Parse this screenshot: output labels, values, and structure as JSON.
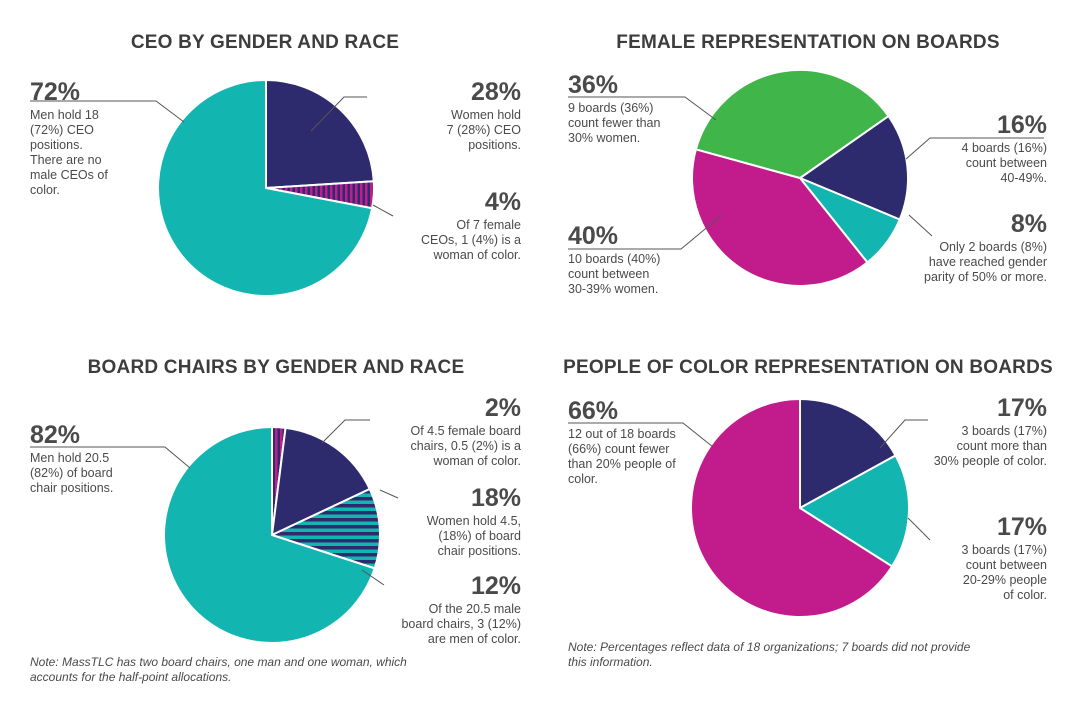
{
  "colors": {
    "navy": "#2e2a6e",
    "teal": "#13b5b1",
    "magenta": "#c21c8c",
    "green": "#3fb54a",
    "text": "#4a4a4a"
  },
  "chart_data": [
    {
      "type": "pie",
      "title": "CEO BY GENDER AND RACE",
      "slices": [
        {
          "value": 24,
          "color": "navy",
          "pattern": "none"
        },
        {
          "value": 4,
          "color": "navy",
          "pattern": "magenta-vertical-stripes"
        },
        {
          "value": 72,
          "color": "teal",
          "pattern": "none"
        }
      ],
      "labels": [
        {
          "pct": "28%",
          "lines": [
            "Women hold",
            "7 (28%) CEO",
            "positions."
          ]
        },
        {
          "pct": "4%",
          "lines": [
            "Of 7 female",
            "CEOs, 1 (4%) is a",
            "woman of color."
          ]
        },
        {
          "pct": "72%",
          "lines": [
            "Men hold 18",
            "(72%) CEO",
            "positions.",
            "There are no",
            "male CEOs of",
            "color."
          ]
        }
      ]
    },
    {
      "type": "pie",
      "title": "FEMALE REPRESENTATION ON BOARDS",
      "slices": [
        {
          "value": 16,
          "color": "navy",
          "pattern": "none"
        },
        {
          "value": 8,
          "color": "teal",
          "pattern": "none"
        },
        {
          "value": 40,
          "color": "magenta",
          "pattern": "none"
        },
        {
          "value": 36,
          "color": "green",
          "pattern": "none"
        }
      ],
      "labels": [
        {
          "pct": "16%",
          "lines": [
            "4 boards (16%)",
            "count between",
            "40-49%."
          ]
        },
        {
          "pct": "8%",
          "lines": [
            "Only 2 boards (8%)",
            "have reached gender",
            "parity of 50% or more."
          ]
        },
        {
          "pct": "40%",
          "lines": [
            "10 boards (40%)",
            "count between",
            "30-39% women."
          ]
        },
        {
          "pct": "36%",
          "lines": [
            "9 boards (36%)",
            "count fewer than",
            "30% women."
          ]
        }
      ]
    },
    {
      "type": "pie",
      "title": "BOARD CHAIRS BY GENDER AND RACE",
      "slices": [
        {
          "value": 2,
          "color": "navy",
          "pattern": "magenta-vertical-stripes"
        },
        {
          "value": 16,
          "color": "navy",
          "pattern": "none"
        },
        {
          "value": 12,
          "color": "teal",
          "pattern": "navy-horizontal-stripes"
        },
        {
          "value": 70,
          "color": "teal",
          "pattern": "none"
        }
      ],
      "labels": [
        {
          "pct": "2%",
          "lines": [
            "Of 4.5 female board",
            "chairs, 0.5 (2%) is a",
            "woman of color."
          ]
        },
        {
          "pct": "18%",
          "lines": [
            "Women hold 4.5,",
            "(18%) of board",
            "chair positions."
          ]
        },
        {
          "pct": "12%",
          "lines": [
            "Of the 20.5 male",
            "board chairs, 3 (12%)",
            "are men of color."
          ]
        },
        {
          "pct": "82%",
          "lines": [
            "Men hold 20.5",
            "(82%) of board",
            "chair positions."
          ]
        }
      ],
      "note_lines": [
        "Note: MassTLC has two board chairs, one man and one woman, which",
        "accounts for the half-point allocations."
      ]
    },
    {
      "type": "pie",
      "title": "PEOPLE OF COLOR REPRESENTATION ON BOARDS",
      "slices": [
        {
          "value": 17,
          "color": "navy",
          "pattern": "none"
        },
        {
          "value": 17,
          "color": "teal",
          "pattern": "none"
        },
        {
          "value": 66,
          "color": "magenta",
          "pattern": "none"
        }
      ],
      "labels": [
        {
          "pct": "17%",
          "lines": [
            "3 boards (17%)",
            "count more than",
            "30% people of color."
          ]
        },
        {
          "pct": "17%",
          "lines": [
            "3 boards (17%)",
            "count between",
            "20-29% people",
            "of color."
          ]
        },
        {
          "pct": "66%",
          "lines": [
            "12 out of 18 boards",
            "(66%) count fewer",
            "than 20% people of",
            "color."
          ]
        }
      ],
      "note_lines": [
        "Note: Percentages reflect data of 18 organizations; 7 boards did not provide",
        "this information."
      ]
    }
  ]
}
